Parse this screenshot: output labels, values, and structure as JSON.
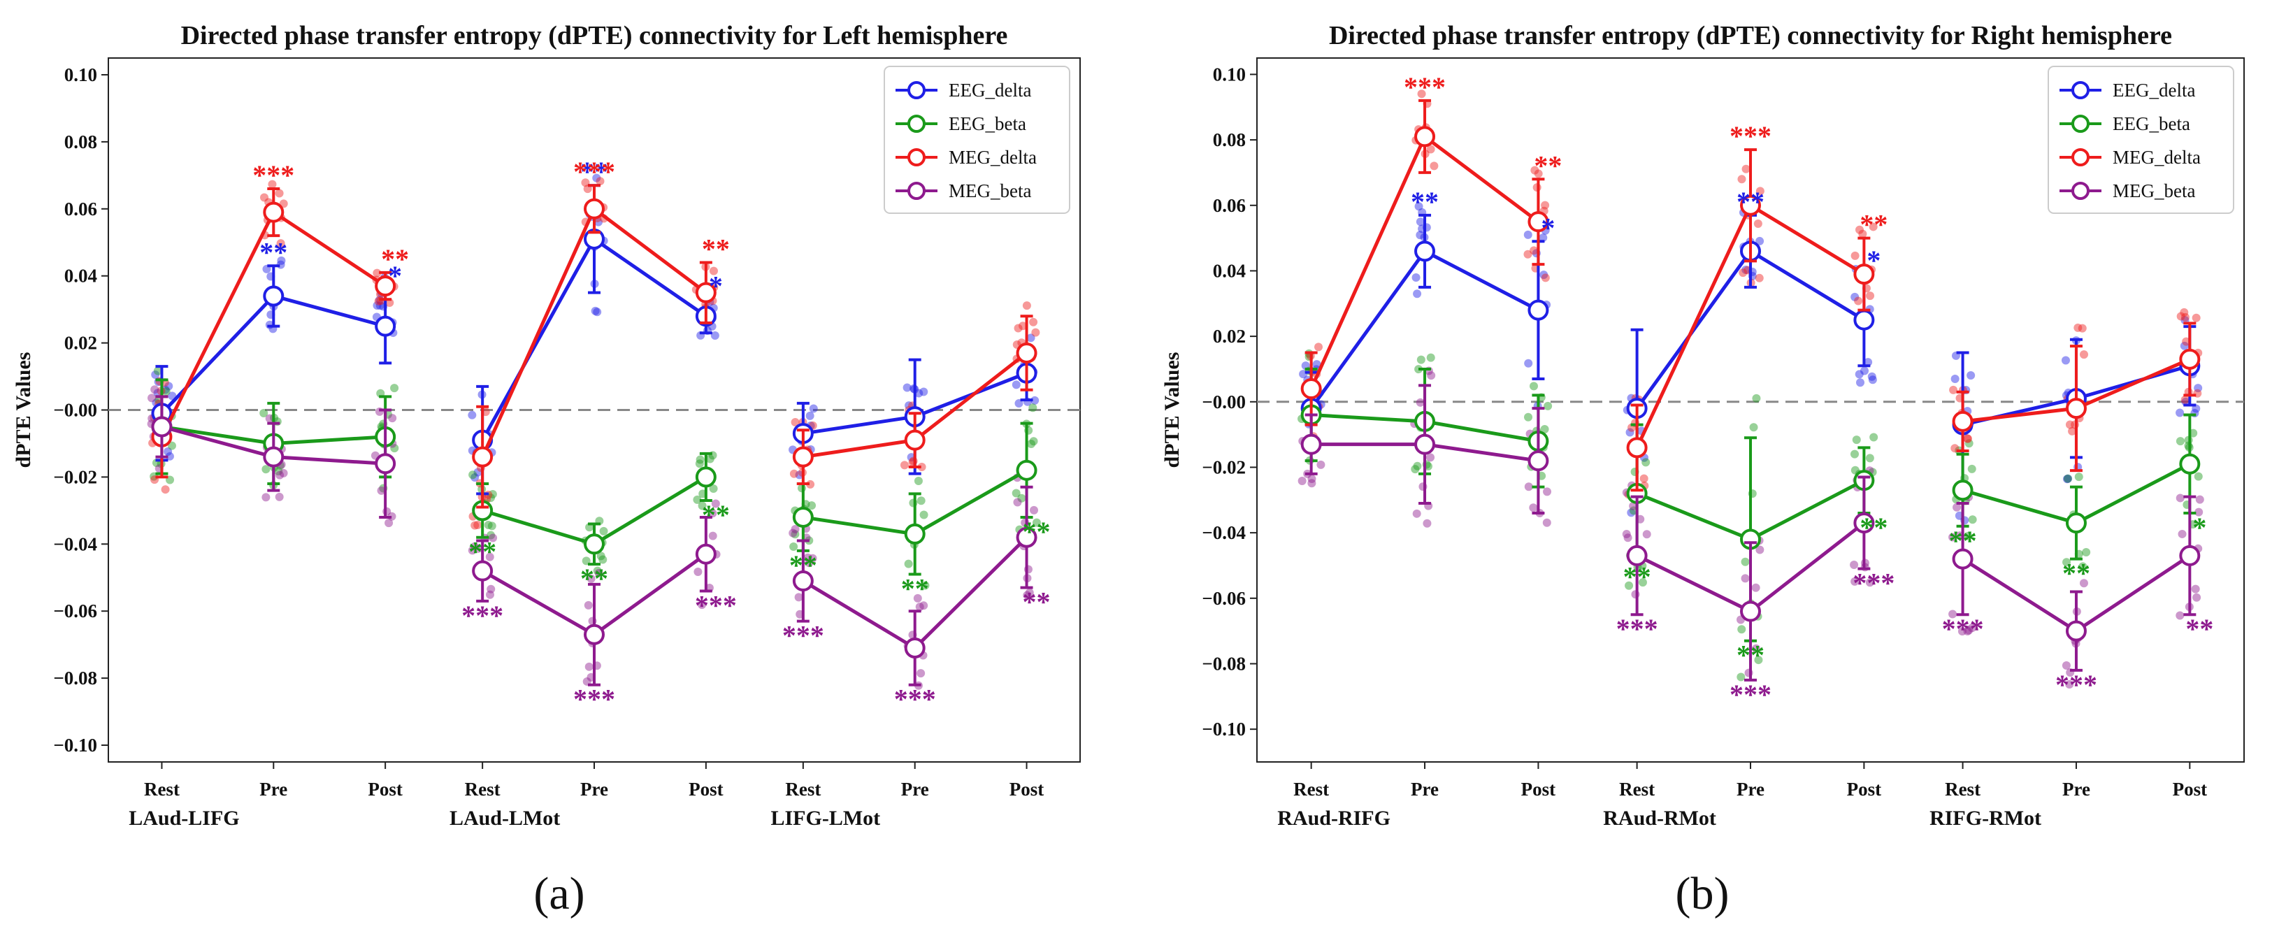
{
  "figure": {
    "panel_labels": [
      "(a)",
      "(b)"
    ]
  },
  "chart_data": [
    {
      "type": "line",
      "title": "Directed phase transfer entropy (dPTE) connectivity for Left hemisphere",
      "xlabel": "",
      "ylabel": "dPTE Values",
      "ylim": [
        -0.105,
        0.105
      ],
      "yticks": [
        0.1,
        0.08,
        0.06,
        0.04,
        0.02,
        0.0,
        -0.02,
        -0.04,
        -0.06,
        -0.08,
        -0.1
      ],
      "ytick_labels": [
        "0.10",
        "0.08",
        "0.06",
        "0.04",
        "0.02",
        "−0.00",
        "−0.02",
        "−0.04",
        "−0.06",
        "−0.08",
        "−0.10"
      ],
      "reference_line": 0.0,
      "groups": [
        "LAud-LIFG",
        "LAud-LMot",
        "LIFG-LMot"
      ],
      "conditions": [
        "Rest",
        "Pre",
        "Post"
      ],
      "legend_position": "top-right",
      "series": [
        {
          "name": "EEG_delta",
          "color": "#1f1fe6",
          "values": [
            [
              -0.001,
              0.034,
              0.025
            ],
            [
              -0.009,
              0.051,
              0.028
            ],
            [
              -0.007,
              -0.002,
              0.011
            ]
          ],
          "errors": [
            [
              0.014,
              0.009,
              0.011
            ],
            [
              0.016,
              0.016,
              0.005
            ],
            [
              0.009,
              0.017,
              0.008
            ]
          ],
          "stars": [
            [
              "",
              "**",
              "*"
            ],
            [
              "",
              "**",
              "*"
            ],
            [
              "",
              "",
              ""
            ]
          ]
        },
        {
          "name": "EEG_beta",
          "color": "#1a9a1a",
          "values": [
            [
              -0.005,
              -0.01,
              -0.008
            ],
            [
              -0.03,
              -0.04,
              -0.02
            ],
            [
              -0.032,
              -0.037,
              -0.018
            ]
          ],
          "errors": [
            [
              0.014,
              0.012,
              0.012
            ],
            [
              0.008,
              0.006,
              0.007
            ],
            [
              0.01,
              0.012,
              0.014
            ]
          ],
          "stars": [
            [
              "",
              "",
              ""
            ],
            [
              "**",
              "**",
              "**"
            ],
            [
              "**",
              "**",
              "**"
            ]
          ]
        },
        {
          "name": "MEG_delta",
          "color": "#ee1c1c",
          "values": [
            [
              -0.008,
              0.059,
              0.037
            ],
            [
              -0.014,
              0.06,
              0.035
            ],
            [
              -0.014,
              -0.009,
              0.017
            ]
          ],
          "errors": [
            [
              0.012,
              0.007,
              0.004
            ],
            [
              0.015,
              0.007,
              0.009
            ],
            [
              0.008,
              0.008,
              0.011
            ]
          ],
          "stars": [
            [
              "",
              "***",
              "**"
            ],
            [
              "",
              "***",
              "**"
            ],
            [
              "",
              "",
              ""
            ]
          ]
        },
        {
          "name": "MEG_beta",
          "color": "#8e1a8e",
          "values": [
            [
              -0.005,
              -0.014,
              -0.016
            ],
            [
              -0.048,
              -0.067,
              -0.043
            ],
            [
              -0.051,
              -0.071,
              -0.038
            ]
          ],
          "errors": [
            [
              0.009,
              0.01,
              0.016
            ],
            [
              0.009,
              0.015,
              0.011
            ],
            [
              0.012,
              0.011,
              0.015
            ]
          ],
          "stars": [
            [
              "",
              "",
              ""
            ],
            [
              "***",
              "***",
              "***"
            ],
            [
              "***",
              "***",
              "**"
            ]
          ]
        }
      ]
    },
    {
      "type": "line",
      "title": "Directed phase transfer entropy (dPTE) connectivity for Right hemisphere",
      "xlabel": "",
      "ylabel": "dPTE Values",
      "ylim": [
        -0.11,
        0.105
      ],
      "yticks": [
        0.1,
        0.08,
        0.06,
        0.04,
        0.02,
        0.0,
        -0.02,
        -0.04,
        -0.06,
        -0.08,
        -0.1
      ],
      "ytick_labels": [
        "0.10",
        "0.08",
        "0.06",
        "0.04",
        "0.02",
        "−0.00",
        "−0.02",
        "−0.04",
        "−0.06",
        "−0.08",
        "−0.10"
      ],
      "reference_line": 0.0,
      "groups": [
        "RAud-RIFG",
        "RAud-RMot",
        "RIFG-RMot"
      ],
      "conditions": [
        "Rest",
        "Pre",
        "Post"
      ],
      "legend_position": "top-right",
      "series": [
        {
          "name": "EEG_delta",
          "color": "#1f1fe6",
          "values": [
            [
              -0.002,
              0.046,
              0.028
            ],
            [
              -0.002,
              0.046,
              0.025
            ],
            [
              -0.007,
              0.001,
              0.011
            ]
          ],
          "errors": [
            [
              0.011,
              0.011,
              0.021
            ],
            [
              0.024,
              0.011,
              0.014
            ],
            [
              0.022,
              0.018,
              0.012
            ]
          ],
          "stars": [
            [
              "",
              "**",
              "*"
            ],
            [
              "",
              "**",
              "*"
            ],
            [
              "",
              "",
              ""
            ]
          ]
        },
        {
          "name": "EEG_beta",
          "color": "#1a9a1a",
          "values": [
            [
              -0.004,
              -0.006,
              -0.012
            ],
            [
              -0.028,
              -0.042,
              -0.024
            ],
            [
              -0.027,
              -0.037,
              -0.019
            ]
          ],
          "errors": [
            [
              0.014,
              0.016,
              0.014
            ],
            [
              0.021,
              0.031,
              0.01
            ],
            [
              0.011,
              0.011,
              0.015
            ]
          ],
          "stars": [
            [
              "",
              "",
              ""
            ],
            [
              "**",
              "**",
              "**"
            ],
            [
              "**",
              "**",
              "*"
            ]
          ]
        },
        {
          "name": "MEG_delta",
          "color": "#ee1c1c",
          "values": [
            [
              0.004,
              0.081,
              0.055
            ],
            [
              -0.014,
              0.06,
              0.039
            ],
            [
              -0.006,
              -0.002,
              0.013
            ]
          ],
          "errors": [
            [
              0.011,
              0.011,
              0.013
            ],
            [
              0.013,
              0.017,
              0.011
            ],
            [
              0.009,
              0.019,
              0.011
            ]
          ],
          "stars": [
            [
              "",
              "***",
              "**"
            ],
            [
              "",
              "***",
              "**"
            ],
            [
              "",
              "",
              ""
            ]
          ]
        },
        {
          "name": "MEG_beta",
          "color": "#8e1a8e",
          "values": [
            [
              -0.013,
              -0.013,
              -0.018
            ],
            [
              -0.047,
              -0.064,
              -0.037
            ],
            [
              -0.048,
              -0.07,
              -0.047
            ]
          ],
          "errors": [
            [
              0.009,
              0.018,
              0.016
            ],
            [
              0.018,
              0.021,
              0.014
            ],
            [
              0.017,
              0.012,
              0.018
            ]
          ],
          "stars": [
            [
              "",
              "",
              ""
            ],
            [
              "***",
              "***",
              "***"
            ],
            [
              "***",
              "***",
              "**"
            ]
          ]
        }
      ]
    }
  ]
}
